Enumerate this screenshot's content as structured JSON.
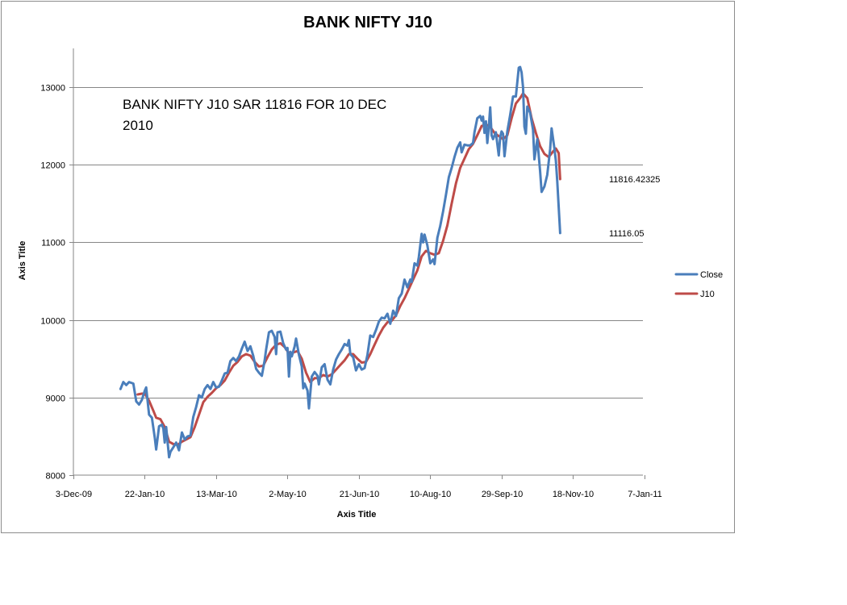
{
  "chart_data": {
    "type": "line",
    "title": "BANK NIFTY J10",
    "xlabel": "Axis Title",
    "ylabel": "Axis Title",
    "ylim": [
      8000,
      13500
    ],
    "y_ticks": [
      8000,
      9000,
      10000,
      11000,
      12000,
      13000
    ],
    "x_range_days": [
      0,
      399
    ],
    "x_ticks": [
      {
        "day": 0,
        "label": "3-Dec-09"
      },
      {
        "day": 50,
        "label": "22-Jan-10"
      },
      {
        "day": 100,
        "label": "13-Mar-10"
      },
      {
        "day": 150,
        "label": "2-May-10"
      },
      {
        "day": 200,
        "label": "21-Jun-10"
      },
      {
        "day": 250,
        "label": "10-Aug-10"
      },
      {
        "day": 300,
        "label": "29-Sep-10"
      },
      {
        "day": 350,
        "label": "18-Nov-10"
      },
      {
        "day": 400,
        "label": "7-Jan-11"
      }
    ],
    "grid": true,
    "legend_position": "right",
    "series": [
      {
        "name": "Close",
        "color": "#4a7ebb",
        "points": [
          [
            33,
            9110
          ],
          [
            35,
            9200
          ],
          [
            37,
            9160
          ],
          [
            39,
            9200
          ],
          [
            42,
            9180
          ],
          [
            44,
            8950
          ],
          [
            46,
            8910
          ],
          [
            48,
            8970
          ],
          [
            50,
            9090
          ],
          [
            51,
            9130
          ],
          [
            53,
            8780
          ],
          [
            55,
            8740
          ],
          [
            57,
            8480
          ],
          [
            58,
            8330
          ],
          [
            60,
            8630
          ],
          [
            62,
            8650
          ],
          [
            63,
            8600
          ],
          [
            64,
            8420
          ],
          [
            65,
            8620
          ],
          [
            66,
            8420
          ],
          [
            67,
            8230
          ],
          [
            68,
            8300
          ],
          [
            70,
            8360
          ],
          [
            72,
            8420
          ],
          [
            74,
            8320
          ],
          [
            76,
            8550
          ],
          [
            78,
            8460
          ],
          [
            80,
            8500
          ],
          [
            82,
            8510
          ],
          [
            84,
            8750
          ],
          [
            86,
            8880
          ],
          [
            88,
            9030
          ],
          [
            90,
            9000
          ],
          [
            92,
            9110
          ],
          [
            94,
            9160
          ],
          [
            96,
            9110
          ],
          [
            98,
            9200
          ],
          [
            100,
            9130
          ],
          [
            102,
            9140
          ],
          [
            104,
            9220
          ],
          [
            106,
            9310
          ],
          [
            108,
            9320
          ],
          [
            110,
            9470
          ],
          [
            112,
            9510
          ],
          [
            114,
            9470
          ],
          [
            116,
            9530
          ],
          [
            118,
            9630
          ],
          [
            120,
            9720
          ],
          [
            122,
            9600
          ],
          [
            124,
            9660
          ],
          [
            126,
            9540
          ],
          [
            128,
            9370
          ],
          [
            130,
            9320
          ],
          [
            132,
            9280
          ],
          [
            134,
            9480
          ],
          [
            135,
            9620
          ],
          [
            137,
            9840
          ],
          [
            139,
            9860
          ],
          [
            141,
            9780
          ],
          [
            142,
            9560
          ],
          [
            143,
            9840
          ],
          [
            145,
            9850
          ],
          [
            147,
            9700
          ],
          [
            149,
            9620
          ],
          [
            150,
            9640
          ],
          [
            151,
            9270
          ],
          [
            152,
            9590
          ],
          [
            153,
            9530
          ],
          [
            155,
            9660
          ],
          [
            156,
            9760
          ],
          [
            158,
            9550
          ],
          [
            160,
            9400
          ],
          [
            161,
            9120
          ],
          [
            162,
            9180
          ],
          [
            164,
            9090
          ],
          [
            165,
            8860
          ],
          [
            167,
            9270
          ],
          [
            169,
            9330
          ],
          [
            171,
            9280
          ],
          [
            172,
            9170
          ],
          [
            174,
            9390
          ],
          [
            176,
            9430
          ],
          [
            178,
            9230
          ],
          [
            180,
            9170
          ],
          [
            182,
            9360
          ],
          [
            184,
            9490
          ],
          [
            186,
            9560
          ],
          [
            188,
            9620
          ],
          [
            190,
            9690
          ],
          [
            192,
            9670
          ],
          [
            193,
            9740
          ],
          [
            194,
            9560
          ],
          [
            196,
            9520
          ],
          [
            198,
            9350
          ],
          [
            200,
            9430
          ],
          [
            202,
            9360
          ],
          [
            204,
            9380
          ],
          [
            206,
            9550
          ],
          [
            208,
            9800
          ],
          [
            210,
            9780
          ],
          [
            212,
            9870
          ],
          [
            214,
            9980
          ],
          [
            216,
            10030
          ],
          [
            218,
            10020
          ],
          [
            220,
            10080
          ],
          [
            222,
            9950
          ],
          [
            224,
            10120
          ],
          [
            226,
            10050
          ],
          [
            228,
            10280
          ],
          [
            230,
            10340
          ],
          [
            232,
            10520
          ],
          [
            234,
            10420
          ],
          [
            236,
            10520
          ],
          [
            237,
            10490
          ],
          [
            239,
            10730
          ],
          [
            241,
            10700
          ],
          [
            242,
            10810
          ],
          [
            244,
            11110
          ],
          [
            245,
            11000
          ],
          [
            246,
            11100
          ],
          [
            248,
            10960
          ],
          [
            250,
            10730
          ],
          [
            252,
            10780
          ],
          [
            253,
            10720
          ],
          [
            255,
            11060
          ],
          [
            257,
            11210
          ],
          [
            259,
            11400
          ],
          [
            261,
            11610
          ],
          [
            263,
            11840
          ],
          [
            265,
            11960
          ],
          [
            267,
            12100
          ],
          [
            269,
            12220
          ],
          [
            271,
            12290
          ],
          [
            272,
            12160
          ],
          [
            274,
            12260
          ],
          [
            276,
            12250
          ],
          [
            278,
            12250
          ],
          [
            280,
            12280
          ],
          [
            281,
            12420
          ],
          [
            283,
            12600
          ],
          [
            285,
            12630
          ],
          [
            286,
            12570
          ],
          [
            287,
            12620
          ],
          [
            288,
            12410
          ],
          [
            289,
            12560
          ],
          [
            290,
            12280
          ],
          [
            291,
            12480
          ],
          [
            292,
            12740
          ],
          [
            293,
            12380
          ],
          [
            294,
            12330
          ],
          [
            296,
            12420
          ],
          [
            298,
            12120
          ],
          [
            299,
            12360
          ],
          [
            300,
            12430
          ],
          [
            301,
            12400
          ],
          [
            302,
            12110
          ],
          [
            304,
            12430
          ],
          [
            306,
            12640
          ],
          [
            308,
            12880
          ],
          [
            310,
            12880
          ],
          [
            312,
            13250
          ],
          [
            313,
            13260
          ],
          [
            314,
            13190
          ],
          [
            315,
            13000
          ],
          [
            316,
            12490
          ],
          [
            317,
            12400
          ],
          [
            318,
            12750
          ],
          [
            320,
            12670
          ],
          [
            322,
            12450
          ],
          [
            323,
            12070
          ],
          [
            325,
            12330
          ],
          [
            327,
            11910
          ],
          [
            328,
            11650
          ],
          [
            330,
            11720
          ],
          [
            332,
            11870
          ],
          [
            334,
            12200
          ],
          [
            335,
            12470
          ],
          [
            337,
            12210
          ],
          [
            338,
            12050
          ],
          [
            339,
            11790
          ],
          [
            341,
            11120
          ]
        ]
      },
      {
        "name": "J10",
        "color": "#be4b48",
        "points": [
          [
            45,
            9040
          ],
          [
            48,
            9050
          ],
          [
            50,
            9050
          ],
          [
            53,
            8960
          ],
          [
            56,
            8830
          ],
          [
            58,
            8740
          ],
          [
            61,
            8720
          ],
          [
            64,
            8620
          ],
          [
            67,
            8430
          ],
          [
            70,
            8400
          ],
          [
            73,
            8390
          ],
          [
            76,
            8430
          ],
          [
            79,
            8460
          ],
          [
            82,
            8490
          ],
          [
            85,
            8620
          ],
          [
            88,
            8780
          ],
          [
            91,
            8940
          ],
          [
            94,
            9010
          ],
          [
            97,
            9060
          ],
          [
            100,
            9120
          ],
          [
            103,
            9160
          ],
          [
            106,
            9220
          ],
          [
            109,
            9320
          ],
          [
            112,
            9410
          ],
          [
            115,
            9460
          ],
          [
            118,
            9530
          ],
          [
            121,
            9560
          ],
          [
            124,
            9540
          ],
          [
            127,
            9460
          ],
          [
            130,
            9400
          ],
          [
            133,
            9410
          ],
          [
            136,
            9520
          ],
          [
            139,
            9620
          ],
          [
            142,
            9680
          ],
          [
            145,
            9700
          ],
          [
            148,
            9650
          ],
          [
            151,
            9570
          ],
          [
            154,
            9580
          ],
          [
            157,
            9600
          ],
          [
            160,
            9500
          ],
          [
            163,
            9320
          ],
          [
            166,
            9200
          ],
          [
            169,
            9250
          ],
          [
            172,
            9250
          ],
          [
            175,
            9290
          ],
          [
            178,
            9270
          ],
          [
            181,
            9300
          ],
          [
            184,
            9360
          ],
          [
            187,
            9420
          ],
          [
            190,
            9480
          ],
          [
            193,
            9560
          ],
          [
            196,
            9560
          ],
          [
            199,
            9500
          ],
          [
            202,
            9450
          ],
          [
            205,
            9460
          ],
          [
            208,
            9560
          ],
          [
            211,
            9680
          ],
          [
            214,
            9800
          ],
          [
            217,
            9900
          ],
          [
            220,
            9970
          ],
          [
            223,
            9990
          ],
          [
            226,
            10060
          ],
          [
            229,
            10180
          ],
          [
            232,
            10280
          ],
          [
            235,
            10400
          ],
          [
            238,
            10520
          ],
          [
            241,
            10640
          ],
          [
            244,
            10820
          ],
          [
            247,
            10890
          ],
          [
            250,
            10860
          ],
          [
            253,
            10840
          ],
          [
            256,
            10860
          ],
          [
            259,
            11020
          ],
          [
            262,
            11220
          ],
          [
            265,
            11500
          ],
          [
            268,
            11760
          ],
          [
            271,
            11960
          ],
          [
            274,
            12080
          ],
          [
            277,
            12200
          ],
          [
            280,
            12270
          ],
          [
            283,
            12380
          ],
          [
            286,
            12500
          ],
          [
            289,
            12520
          ],
          [
            292,
            12490
          ],
          [
            295,
            12410
          ],
          [
            298,
            12370
          ],
          [
            301,
            12330
          ],
          [
            304,
            12380
          ],
          [
            307,
            12600
          ],
          [
            310,
            12790
          ],
          [
            313,
            12860
          ],
          [
            315,
            12920
          ],
          [
            318,
            12860
          ],
          [
            321,
            12600
          ],
          [
            324,
            12410
          ],
          [
            327,
            12240
          ],
          [
            330,
            12140
          ],
          [
            333,
            12100
          ],
          [
            336,
            12170
          ],
          [
            338,
            12210
          ],
          [
            340,
            12150
          ],
          [
            341,
            11816
          ]
        ]
      }
    ],
    "data_labels": [
      {
        "series": "J10",
        "text": "11816.42325"
      },
      {
        "series": "Close",
        "text": "11116.05"
      }
    ],
    "annotation": [
      "BANK NIFTY J10 SAR 11816 FOR 10 DEC",
      "2010"
    ]
  }
}
